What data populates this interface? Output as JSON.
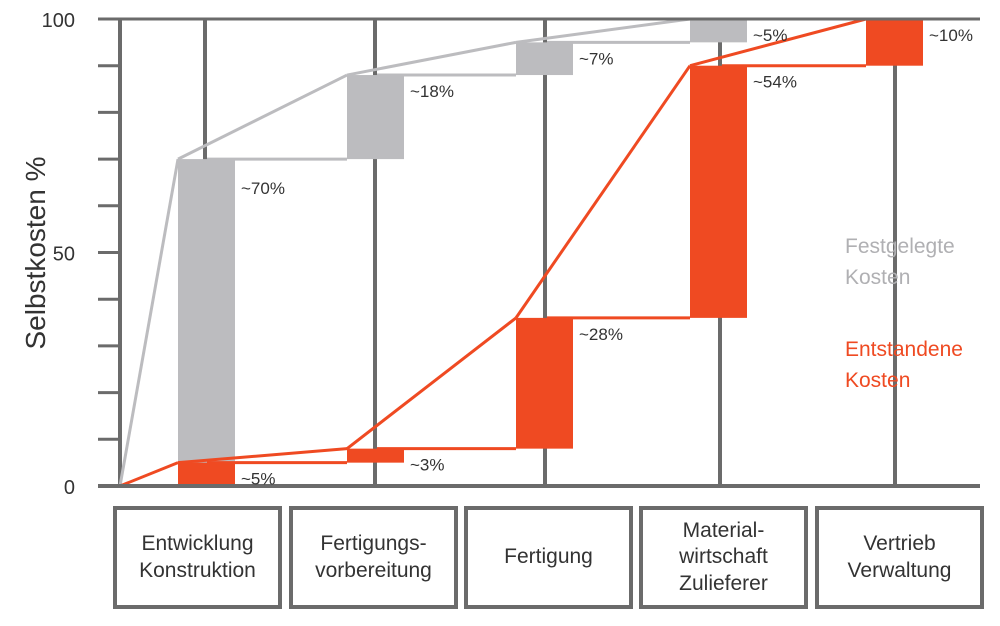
{
  "chart_data": {
    "type": "bar",
    "ylabel": "Selbstkosten %",
    "ylim": [
      0,
      100
    ],
    "yticks": [
      "0",
      "50",
      "100"
    ],
    "categories": [
      "Entwicklung\nKonstruktion",
      "Fertigungs-\nvorbereitung",
      "Fertigung",
      "Material-\nwirtschaft\nZulieferer",
      "Vertrieb\nVerwaltung"
    ],
    "series": [
      {
        "name": "Festgelegte\nKosten",
        "color": "#bcbcbf",
        "increments": [
          70,
          18,
          7,
          5,
          0
        ],
        "labels": [
          "~70%",
          "~18%",
          "~7%",
          "~5%",
          ""
        ]
      },
      {
        "name": "Entstandene\nKosten",
        "color": "#ef4a22",
        "increments": [
          5,
          3,
          28,
          54,
          10
        ],
        "labels": [
          "~5%",
          "~3%",
          "~28%",
          "~54%",
          "~10%"
        ]
      }
    ]
  }
}
